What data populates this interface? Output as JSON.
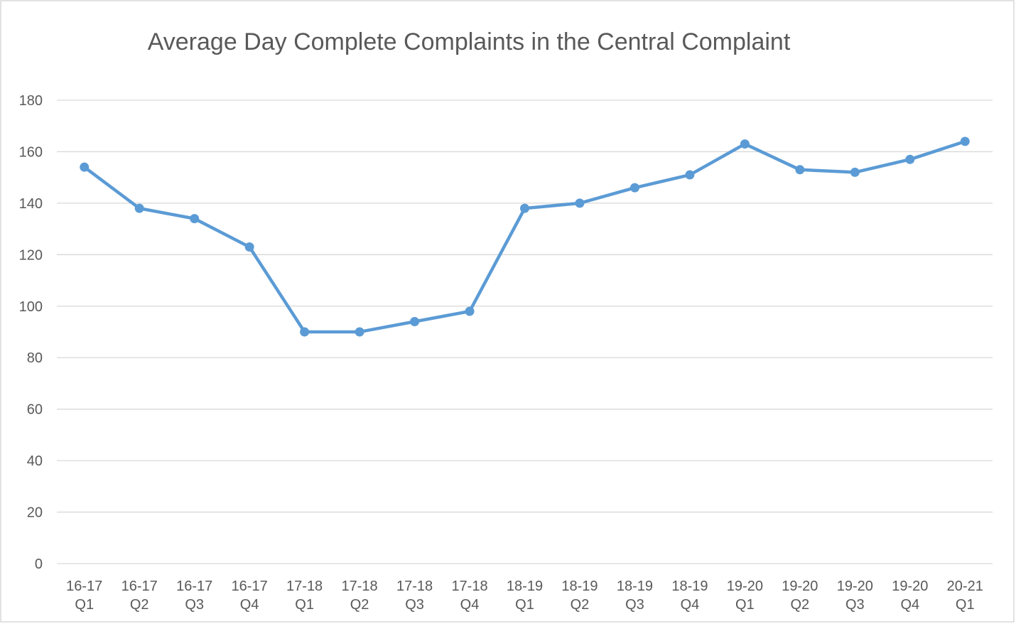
{
  "chart_data": {
    "type": "line",
    "title": "Average Day Complete Complaints in the Central Complaint",
    "categories": [
      "16-17 Q1",
      "16-17 Q2",
      "16-17 Q3",
      "16-17 Q4",
      "17-18 Q1",
      "17-18 Q2",
      "17-18 Q3",
      "17-18 Q4",
      "18-19 Q1",
      "18-19 Q2",
      "18-19 Q3",
      "18-19 Q4",
      "19-20 Q1",
      "19-20 Q2",
      "19-20 Q3",
      "19-20 Q4",
      "20-21 Q1"
    ],
    "series": [
      {
        "name": "Average Day Complete Complaints",
        "color": "#5b9bd5",
        "values": [
          154,
          138,
          134,
          123,
          90,
          90,
          94,
          98,
          138,
          140,
          146,
          151,
          163,
          153,
          152,
          157,
          164
        ]
      }
    ],
    "ylim": [
      0,
      180
    ],
    "yticks": [
      0,
      20,
      40,
      60,
      80,
      100,
      120,
      140,
      160,
      180
    ],
    "grid": true
  }
}
